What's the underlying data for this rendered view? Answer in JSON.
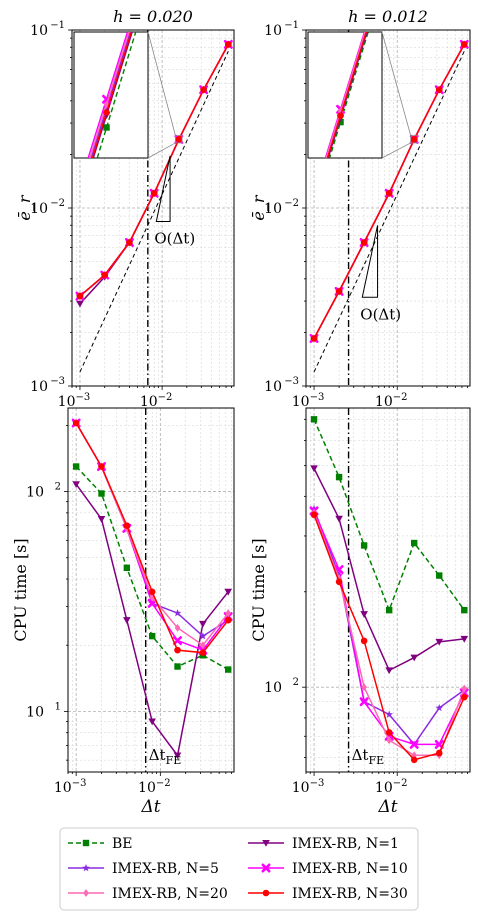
{
  "chart_data": [
    {
      "type": "line",
      "title": "h = 0.020",
      "xlabel": "",
      "ylabel": "ē_r",
      "x_scale": "log",
      "y_scale": "log",
      "xlim": [
        0.0008,
        0.075
      ],
      "ylim": [
        0.001,
        0.1
      ],
      "x_ticks": [
        "10^-3",
        "10^-2"
      ],
      "y_ticks": [
        "10^-3",
        "10^-2",
        "10^-1"
      ],
      "grid": true,
      "x_values": [
        0.001,
        0.002,
        0.004,
        0.008,
        0.016,
        0.032,
        0.064
      ],
      "series": [
        {
          "name": "BE",
          "values": [
            0.0032,
            0.0042,
            0.0064,
            0.0121,
            0.0243,
            0.0462,
            0.083
          ]
        },
        {
          "name": "IMEX-RB, N=1",
          "values": [
            0.0029,
            0.0041,
            0.0064,
            0.0121,
            0.0243,
            0.0462,
            0.083
          ]
        },
        {
          "name": "IMEX-RB, N=5",
          "values": [
            0.0032,
            0.0042,
            0.0064,
            0.0121,
            0.0243,
            0.0462,
            0.083
          ]
        },
        {
          "name": "IMEX-RB, N=10",
          "values": [
            0.0032,
            0.0042,
            0.0064,
            0.0121,
            0.0243,
            0.0462,
            0.083
          ]
        },
        {
          "name": "IMEX-RB, N=20",
          "values": [
            0.0032,
            0.0042,
            0.0064,
            0.0121,
            0.0243,
            0.0462,
            0.083
          ]
        },
        {
          "name": "IMEX-RB, N=30",
          "values": [
            0.0032,
            0.0042,
            0.0064,
            0.0121,
            0.0243,
            0.0462,
            0.083
          ]
        }
      ],
      "reference_line": {
        "x": [
          0.001,
          0.064
        ],
        "y": [
          0.0012,
          0.076
        ]
      },
      "dt_fe": 0.0067,
      "annotations": [
        "O(Δt)"
      ]
    },
    {
      "type": "line",
      "title": "h = 0.012",
      "xlabel": "",
      "ylabel": "ē_r",
      "x_scale": "log",
      "y_scale": "log",
      "xlim": [
        0.0008,
        0.075
      ],
      "ylim": [
        0.001,
        0.1
      ],
      "x_ticks": [
        "10^-3",
        "10^-2"
      ],
      "y_ticks": [
        "10^-3",
        "10^-2",
        "10^-1"
      ],
      "grid": true,
      "x_values": [
        0.001,
        0.002,
        0.004,
        0.008,
        0.016,
        0.032,
        0.064
      ],
      "series": [
        {
          "name": "BE",
          "values": [
            0.00185,
            0.0034,
            0.0064,
            0.0121,
            0.0243,
            0.0462,
            0.083
          ]
        },
        {
          "name": "IMEX-RB, N=1",
          "values": [
            0.00185,
            0.0034,
            0.0064,
            0.0121,
            0.0243,
            0.0462,
            0.083
          ]
        },
        {
          "name": "IMEX-RB, N=5",
          "values": [
            0.00185,
            0.0034,
            0.0064,
            0.0121,
            0.0243,
            0.0462,
            0.083
          ]
        },
        {
          "name": "IMEX-RB, N=10",
          "values": [
            0.00185,
            0.0034,
            0.0064,
            0.0121,
            0.0243,
            0.0462,
            0.083
          ]
        },
        {
          "name": "IMEX-RB, N=20",
          "values": [
            0.00185,
            0.0034,
            0.0064,
            0.0121,
            0.0243,
            0.0462,
            0.083
          ]
        },
        {
          "name": "IMEX-RB, N=30",
          "values": [
            0.00185,
            0.0034,
            0.0064,
            0.0121,
            0.0243,
            0.0462,
            0.083
          ]
        }
      ],
      "reference_line": {
        "x": [
          0.001,
          0.064
        ],
        "y": [
          0.0012,
          0.076
        ]
      },
      "dt_fe": 0.0026,
      "annotations": [
        "O(Δt)"
      ]
    },
    {
      "type": "line",
      "title": "",
      "xlabel": "Δt",
      "ylabel": "CPU time [s]",
      "x_scale": "log",
      "y_scale": "log",
      "xlim": [
        0.0008,
        0.075
      ],
      "ylim": [
        5.3,
        240
      ],
      "x_ticks": [
        "10^-3",
        "10^-2"
      ],
      "y_ticks": [
        "10^1",
        "10^2"
      ],
      "grid": true,
      "x_values": [
        0.001,
        0.002,
        0.004,
        0.008,
        0.016,
        0.032,
        0.064
      ],
      "series": [
        {
          "name": "BE",
          "values": [
            130,
            98,
            45,
            22,
            16,
            18,
            15.5
          ]
        },
        {
          "name": "IMEX-RB, N=1",
          "values": [
            108,
            75,
            26,
            9,
            6.3,
            25,
            35
          ]
        },
        {
          "name": "IMEX-RB, N=5",
          "values": [
            205,
            130,
            68,
            31,
            28,
            22,
            26
          ]
        },
        {
          "name": "IMEX-RB, N=10",
          "values": [
            205,
            130,
            68,
            31,
            21,
            19,
            27
          ]
        },
        {
          "name": "IMEX-RB, N=20",
          "values": [
            205,
            130,
            68,
            33,
            24,
            20,
            28
          ]
        },
        {
          "name": "IMEX-RB, N=30",
          "values": [
            205,
            130,
            70,
            35,
            19,
            18.5,
            26
          ]
        }
      ],
      "dt_fe": 0.0067,
      "annotations": [
        "Δt_FE"
      ]
    },
    {
      "type": "line",
      "title": "",
      "xlabel": "Δt",
      "ylabel": "CPU time [s]",
      "x_scale": "log",
      "y_scale": "log",
      "xlim": [
        0.0008,
        0.075
      ],
      "ylim": [
        54,
        760
      ],
      "x_ticks": [
        "10^-3",
        "10^-2"
      ],
      "y_ticks": [
        "10^2"
      ],
      "grid": true,
      "x_values": [
        0.001,
        0.002,
        0.004,
        0.008,
        0.016,
        0.032,
        0.064
      ],
      "series": [
        {
          "name": "BE",
          "values": [
            700,
            460,
            280,
            175,
            285,
            225,
            175
          ]
        },
        {
          "name": "IMEX-RB, N=1",
          "values": [
            490,
            340,
            170,
            113,
            124,
            139,
            142
          ]
        },
        {
          "name": "IMEX-RB, N=5",
          "values": [
            365,
            225,
            90,
            82,
            66,
            86,
            98
          ]
        },
        {
          "name": "IMEX-RB, N=10",
          "values": [
            360,
            235,
            90,
            70,
            66,
            66,
            96
          ]
        },
        {
          "name": "IMEX-RB, N=20",
          "values": [
            355,
            220,
            100,
            68,
            61,
            61,
            99
          ]
        },
        {
          "name": "IMEX-RB, N=30",
          "values": [
            350,
            215,
            140,
            72,
            59,
            62,
            93
          ]
        }
      ],
      "dt_fe": 0.0026,
      "annotations": [
        "Δt_FE"
      ]
    }
  ],
  "legend": {
    "placement": "bottom",
    "entries": [
      {
        "label": "BE",
        "color": "#008000",
        "marker": "square",
        "dash": true
      },
      {
        "label": "IMEX-RB, N=1",
        "color": "#800080",
        "marker": "triangle-down",
        "dash": false
      },
      {
        "label": "IMEX-RB, N=5",
        "color": "#8a2be2",
        "marker": "star",
        "dash": false
      },
      {
        "label": "IMEX-RB, N=10",
        "color": "#ff00ff",
        "marker": "x-filled",
        "dash": false
      },
      {
        "label": "IMEX-RB, N=20",
        "color": "#ff69b4",
        "marker": "diamond",
        "dash": false
      },
      {
        "label": "IMEX-RB, N=30",
        "color": "#ff0000",
        "marker": "circle",
        "dash": false
      }
    ]
  }
}
